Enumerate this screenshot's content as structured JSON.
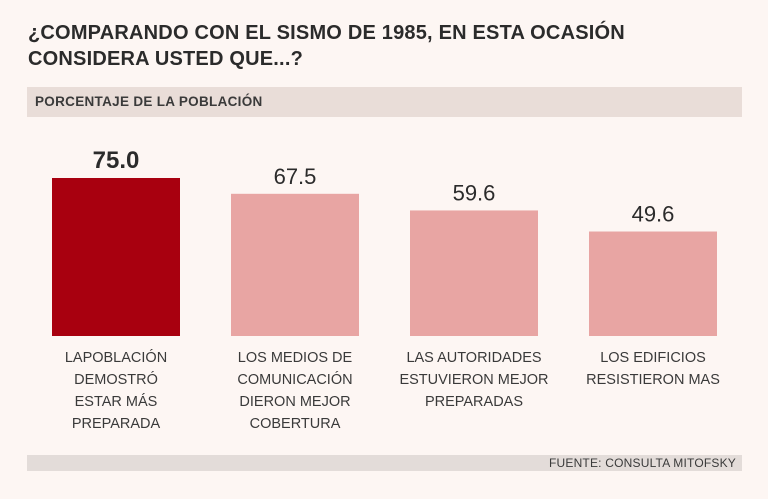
{
  "title_line1": "¿COMPARANDO CON EL SISMO DE 1985, EN ESTA OCASIÓN",
  "title_line2": "CONSIDERA USTED QUE...?",
  "subtitle": "PORCENTAJE DE LA POBLACIÓN",
  "source": "FUENTE: CONSULTA MITOFSKY",
  "colors": {
    "highlight": "#a8000f",
    "normal": "#e8a5a3",
    "text": "#3a3a3a"
  },
  "chart_data": {
    "type": "bar",
    "title": "¿COMPARANDO CON EL SISMO DE 1985, EN ESTA OCASIÓN CONSIDERA USTED QUE...?",
    "ylabel": "PORCENTAJE DE LA POBLACIÓN",
    "categories": [
      [
        "LAPOBLACIÓN",
        "DEMOSTRÓ",
        "ESTAR MÁS",
        "PREPARADA"
      ],
      [
        "LOS MEDIOS DE",
        "COMUNICACIÓN",
        "DIERON MEJOR",
        "COBERTURA"
      ],
      [
        "LAS AUTORIDADES",
        "ESTUVIERON MEJOR",
        "PREPARADAS"
      ],
      [
        "LOS EDIFICIOS",
        "RESISTIERON MAS"
      ]
    ],
    "values": [
      75.0,
      67.5,
      59.6,
      49.6
    ],
    "value_labels": [
      "75.0",
      "67.5",
      "59.6",
      "49.6"
    ],
    "highlight_index": 0,
    "ylim": [
      0,
      75
    ]
  }
}
